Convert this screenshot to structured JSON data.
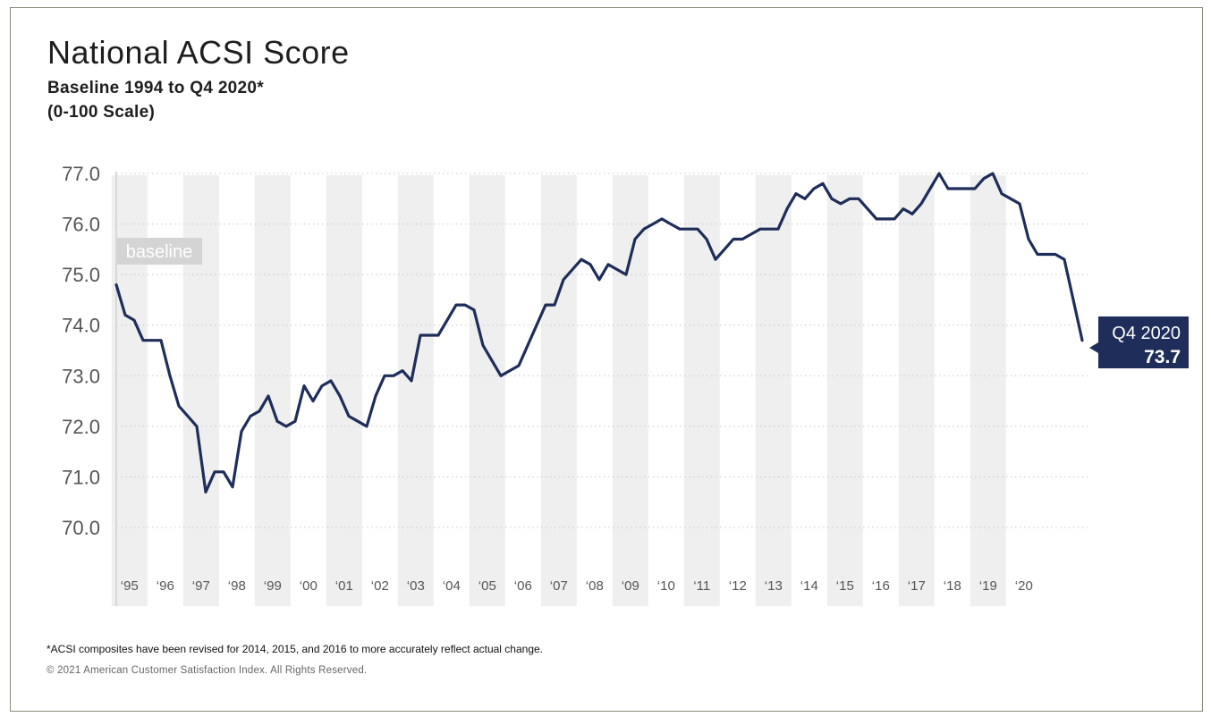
{
  "title": "National ACSI Score",
  "subtitle_line1": "Baseline 1994 to Q4 2020*",
  "subtitle_line2": "(0-100 Scale)",
  "footnote": "*ACSI composites have been revised for 2014, 2015, and 2016 to more accurately reflect actual change.",
  "copyright": "© 2021 American Customer Satisfaction Index. All Rights Reserved.",
  "colors": {
    "line": "#1f2d5a",
    "band": "#efefef",
    "grid": "#c8c8c8",
    "axis_text": "#555555",
    "callout_bg": "#1f2d5a",
    "baseline_badge": "#d4d4d4"
  },
  "chart_data": {
    "type": "line",
    "ylim": [
      70,
      77
    ],
    "yticks": [
      "77.0",
      "76.0",
      "75.0",
      "74.0",
      "73.0",
      "72.0",
      "71.0",
      "70.0"
    ],
    "ytick_values": [
      77,
      76,
      75,
      74,
      73,
      72,
      71,
      70
    ],
    "grid": "dotted horizontal",
    "baseline_label": "baseline",
    "year_labels": [
      "‘95",
      "‘96",
      "‘97",
      "‘98",
      "‘99",
      "‘00",
      "‘01",
      "‘02",
      "‘03",
      "‘04",
      "‘05",
      "‘06",
      "‘07",
      "‘08",
      "‘09",
      "‘10",
      "‘11",
      "‘12",
      "‘13",
      "‘14",
      "‘15",
      "‘16",
      "‘17",
      "‘18",
      "‘19",
      "‘20"
    ],
    "series": [
      {
        "values": [
          74.8,
          74.2,
          74.1,
          73.7,
          73.7,
          73.7,
          73.0,
          72.4,
          72.2,
          72.0,
          70.7,
          71.1,
          71.1,
          70.8,
          71.9,
          72.2,
          72.3,
          72.6,
          72.1,
          72.0,
          72.1,
          72.8,
          72.5,
          72.8,
          72.9,
          72.6,
          72.2,
          72.1,
          72.0,
          72.6,
          73.0,
          73.0,
          73.1,
          72.9,
          73.8,
          73.8,
          73.8,
          74.1,
          74.4,
          74.4,
          74.3,
          73.6,
          73.3,
          73.0,
          73.1,
          73.2,
          73.6,
          74.0,
          74.4,
          74.4,
          74.9,
          75.1,
          75.3,
          75.2,
          74.9,
          75.2,
          75.1,
          75.0,
          75.7,
          75.9,
          76.0,
          76.1,
          76.0,
          75.9,
          75.9,
          75.9,
          75.7,
          75.3,
          75.5,
          75.7,
          75.7,
          75.8,
          75.9,
          75.9,
          75.9,
          76.3,
          76.6,
          76.5,
          76.7,
          76.8,
          76.5,
          76.4,
          76.5,
          76.5,
          76.3,
          76.1,
          76.1,
          76.1,
          76.3,
          76.2,
          76.4,
          76.7,
          77.0,
          76.7,
          76.7,
          76.7,
          76.7,
          76.9,
          77.0,
          76.6,
          76.5,
          76.4,
          75.7,
          75.4,
          75.4,
          75.4,
          75.3,
          74.5,
          73.7
        ]
      }
    ],
    "callout": {
      "label": "Q4 2020",
      "value": "73.7"
    }
  }
}
